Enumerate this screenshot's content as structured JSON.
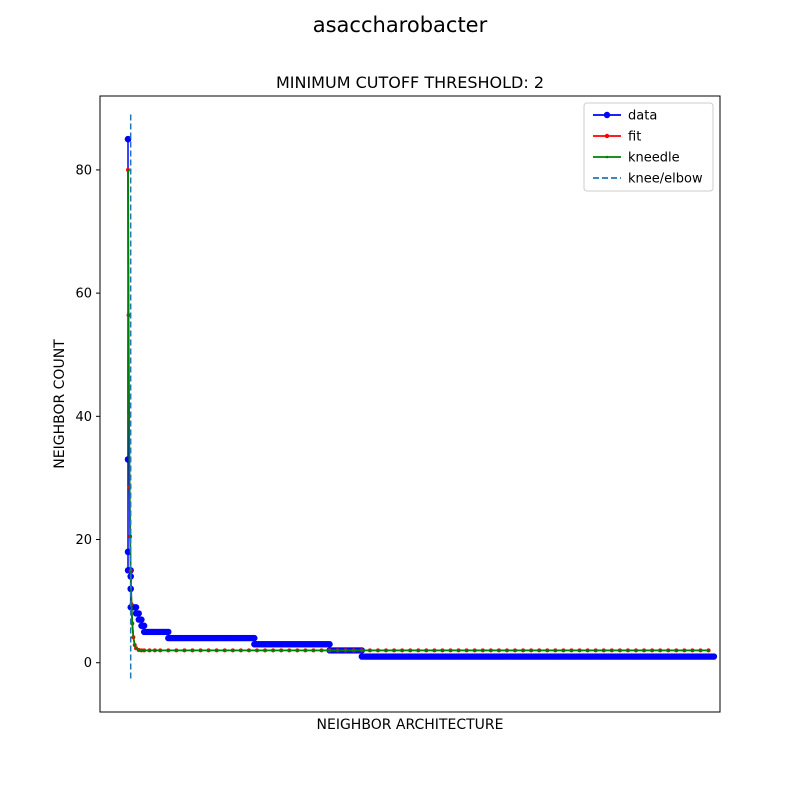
{
  "chart_data": {
    "type": "line",
    "suptitle": "asaccharobacter",
    "title": "MINIMUM CUTOFF THRESHOLD: 2",
    "xlabel": "NEIGHBOR ARCHITECTURE",
    "ylabel": "NEIGHBOR COUNT",
    "x_ticks_shown": false,
    "xlim": [
      -1,
      220
    ],
    "ylim": [
      -8,
      92
    ],
    "yticks": [
      0,
      20,
      40,
      60,
      80
    ],
    "legend_position": "top-right",
    "knee_x": 1,
    "knee_ymin": -3,
    "knee_ymax": 89,
    "series": [
      {
        "name": "data",
        "color": "#0000ff",
        "marker": "circle",
        "runs": [
          {
            "x0": 0,
            "x1": 0,
            "y": 85
          },
          {
            "x0": 0,
            "x1": 0,
            "y": 33
          },
          {
            "x0": 0,
            "x1": 0,
            "y": 18
          },
          {
            "x0": 0,
            "x1": 1,
            "y": 15
          },
          {
            "x0": 1,
            "x1": 1,
            "y": 14
          },
          {
            "x0": 1,
            "x1": 1,
            "y": 12
          },
          {
            "x0": 1,
            "x1": 3,
            "y": 9
          },
          {
            "x0": 3,
            "x1": 4,
            "y": 8
          },
          {
            "x0": 4,
            "x1": 5,
            "y": 7
          },
          {
            "x0": 5,
            "x1": 6,
            "y": 6
          },
          {
            "x0": 6,
            "x1": 15,
            "y": 5
          },
          {
            "x0": 15,
            "x1": 47,
            "y": 4
          },
          {
            "x0": 47,
            "x1": 75,
            "y": 3
          },
          {
            "x0": 75,
            "x1": 87,
            "y": 2
          },
          {
            "x0": 87,
            "x1": 218,
            "y": 1
          }
        ]
      },
      {
        "name": "fit",
        "color": "#ff0000",
        "marker": "small-circle",
        "a": 78,
        "k": 1.8,
        "c": 2,
        "x_end": 218
      },
      {
        "name": "kneedle",
        "color": "#008000",
        "marker": "point",
        "a": 78,
        "k": 1.8,
        "c": 2,
        "x_end": 218
      },
      {
        "name": "knee/elbow",
        "color": "#1f77b4",
        "style": "dashed"
      }
    ]
  }
}
